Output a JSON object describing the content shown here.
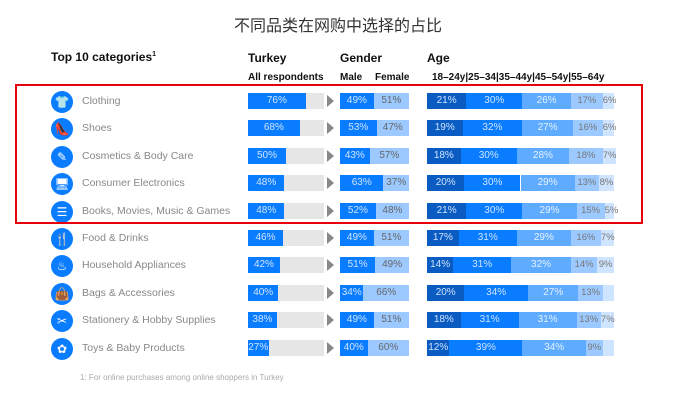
{
  "title": "不同品类在网购中选择的占比",
  "headers": {
    "categories": "Top 10 categories",
    "sup": "1",
    "turkey": "Turkey",
    "all": "All respondents",
    "gender": "Gender",
    "male": "Male",
    "female": "Female",
    "age": "Age",
    "age_groups": "18–24y|25–34|35–44y|45–54y|55–64y"
  },
  "footnote": "1: For online purchases among online shoppers in Turkey",
  "colors": {
    "turkey": "#0a7cff",
    "track": "#e6e6e6",
    "male": "#0a7cff",
    "female": "#9cc9ff",
    "age": [
      "#0a5cc2",
      "#0a7cff",
      "#5eabff",
      "#9cc9ff",
      "#cfe4ff"
    ],
    "highlight": "#e8000b"
  },
  "chart_data": {
    "type": "bar",
    "stacked": true,
    "categories": [
      "Clothing",
      "Shoes",
      "Cosmetics & Body Care",
      "Consumer Electronics",
      "Books, Movies, Music & Games",
      "Food & Drinks",
      "Household Appliances",
      "Bags & Accessories",
      "Stationery & Hobby Supplies",
      "Toys & Baby Products"
    ],
    "icons": [
      "tshirt-icon",
      "shoe-icon",
      "cosmetics-icon",
      "electronics-icon",
      "books-icon",
      "food-icon",
      "appliance-icon",
      "bag-icon",
      "stationery-icon",
      "toys-icon"
    ],
    "turkey": [
      76,
      68,
      50,
      48,
      48,
      46,
      42,
      40,
      38,
      27
    ],
    "male": [
      49,
      53,
      43,
      63,
      52,
      49,
      51,
      34,
      49,
      40
    ],
    "female": [
      51,
      47,
      57,
      37,
      48,
      51,
      49,
      66,
      51,
      60
    ],
    "age_series": [
      "18–24y",
      "25–34",
      "35–44y",
      "45–54y",
      "55–64y"
    ],
    "age": [
      [
        21,
        30,
        26,
        17,
        6
      ],
      [
        19,
        32,
        27,
        16,
        6
      ],
      [
        18,
        30,
        28,
        18,
        7
      ],
      [
        20,
        30,
        29,
        13,
        8
      ],
      [
        21,
        30,
        29,
        15,
        5
      ],
      [
        17,
        31,
        29,
        16,
        7
      ],
      [
        14,
        31,
        32,
        14,
        9
      ],
      [
        20,
        34,
        27,
        13,
        6
      ],
      [
        18,
        31,
        31,
        13,
        7
      ],
      [
        12,
        39,
        34,
        9,
        6
      ]
    ],
    "age_labeled": [
      [
        1,
        1,
        1,
        1,
        1
      ],
      [
        1,
        1,
        1,
        1,
        1
      ],
      [
        1,
        1,
        1,
        1,
        1
      ],
      [
        1,
        1,
        1,
        1,
        1
      ],
      [
        1,
        1,
        1,
        1,
        1
      ],
      [
        1,
        1,
        1,
        1,
        1
      ],
      [
        1,
        1,
        1,
        1,
        1
      ],
      [
        1,
        1,
        1,
        1,
        0
      ],
      [
        1,
        1,
        1,
        1,
        1
      ],
      [
        1,
        1,
        1,
        1,
        0
      ]
    ],
    "highlighted_rows": [
      0,
      1,
      2,
      3,
      4
    ]
  }
}
